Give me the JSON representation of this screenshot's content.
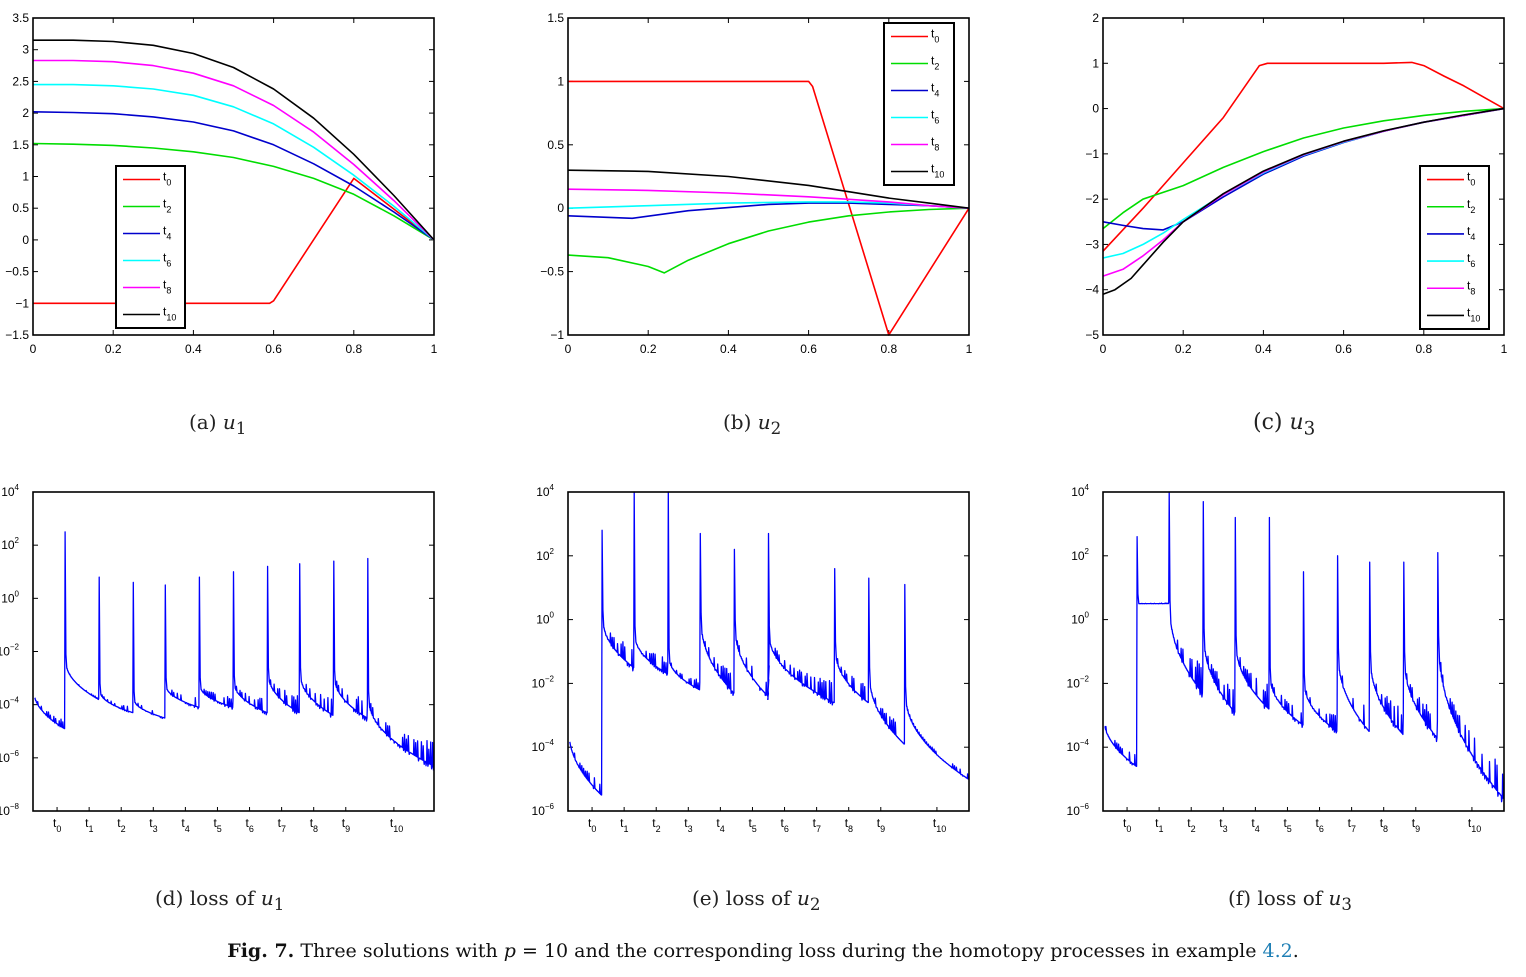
{
  "figure_caption": {
    "label": "Fig. 7.",
    "text_before": " Three solutions with ",
    "param": "p",
    "text_eq": " = 10",
    "text_after": " and the corresponding loss during the homotopy processes in example ",
    "ref": "4.2",
    "end": "."
  },
  "subcaptions": [
    {
      "tag": "(a)",
      "var": "u",
      "sub": "1"
    },
    {
      "tag": "(b)",
      "var": "u",
      "sub": "2"
    },
    {
      "tag": "(c)",
      "var": "u",
      "sub": "3"
    },
    {
      "tag": "(d) loss of",
      "var": "u",
      "sub": "1"
    },
    {
      "tag": "(e) loss of",
      "var": "u",
      "sub": "2"
    },
    {
      "tag": "(f) loss of",
      "var": "u",
      "sub": "3"
    }
  ],
  "colors": {
    "t0": "#ff0000",
    "t2": "#00dd00",
    "t4": "#0000cc",
    "t6": "#00ffff",
    "t8": "#ff00ff",
    "t10": "#000000",
    "loss": "#0000ff"
  },
  "chart_data": [
    {
      "type": "line",
      "id": "u1",
      "xlim": [
        0,
        1
      ],
      "ylim": [
        -1.5,
        3.5
      ],
      "xticks": [
        "0",
        "0.2",
        "0.4",
        "0.6",
        "0.8",
        "1"
      ],
      "yticks": [
        "-1.5",
        "-1",
        "-0.5",
        "0",
        "0.5",
        "1",
        "1.5",
        "2",
        "2.5",
        "3",
        "3.5"
      ],
      "legend": [
        "t0",
        "t2",
        "t4",
        "t6",
        "t8",
        "t10"
      ],
      "legend_position": "lower-center",
      "series": [
        {
          "name": "t0",
          "x": [
            0,
            0.55,
            0.59,
            0.6,
            0.8,
            1.0
          ],
          "y": [
            -1,
            -1,
            -1,
            -0.96,
            0.97,
            0
          ]
        },
        {
          "name": "t2",
          "x": [
            0,
            0.1,
            0.2,
            0.3,
            0.4,
            0.5,
            0.6,
            0.7,
            0.8,
            0.9,
            1.0
          ],
          "y": [
            1.52,
            1.51,
            1.49,
            1.45,
            1.39,
            1.3,
            1.16,
            0.97,
            0.72,
            0.38,
            0
          ]
        },
        {
          "name": "t4",
          "x": [
            0,
            0.1,
            0.2,
            0.3,
            0.4,
            0.5,
            0.6,
            0.7,
            0.8,
            0.9,
            1.0
          ],
          "y": [
            2.02,
            2.01,
            1.99,
            1.94,
            1.86,
            1.72,
            1.5,
            1.2,
            0.85,
            0.44,
            0
          ]
        },
        {
          "name": "t6",
          "x": [
            0,
            0.1,
            0.2,
            0.3,
            0.4,
            0.5,
            0.6,
            0.7,
            0.8,
            0.9,
            1.0
          ],
          "y": [
            2.45,
            2.45,
            2.43,
            2.38,
            2.28,
            2.1,
            1.83,
            1.46,
            1.02,
            0.53,
            0
          ]
        },
        {
          "name": "t8",
          "x": [
            0,
            0.1,
            0.2,
            0.3,
            0.4,
            0.5,
            0.6,
            0.7,
            0.8,
            0.9,
            1.0
          ],
          "y": [
            2.83,
            2.83,
            2.81,
            2.75,
            2.63,
            2.43,
            2.12,
            1.7,
            1.19,
            0.62,
            0
          ]
        },
        {
          "name": "t10",
          "x": [
            0,
            0.1,
            0.2,
            0.3,
            0.4,
            0.5,
            0.6,
            0.7,
            0.8,
            0.9,
            1.0
          ],
          "y": [
            3.15,
            3.15,
            3.13,
            3.07,
            2.94,
            2.72,
            2.38,
            1.92,
            1.35,
            0.7,
            0
          ]
        }
      ]
    },
    {
      "type": "line",
      "id": "u2",
      "xlim": [
        0,
        1
      ],
      "ylim": [
        -1,
        1.5
      ],
      "xticks": [
        "0",
        "0.2",
        "0.4",
        "0.6",
        "0.8",
        "1"
      ],
      "yticks": [
        "-1",
        "-0.5",
        "0",
        "0.5",
        "1",
        "1.5"
      ],
      "legend": [
        "t0",
        "t2",
        "t4",
        "t6",
        "t8",
        "t10"
      ],
      "legend_position": "top-right",
      "series": [
        {
          "name": "t0",
          "x": [
            0,
            0.58,
            0.6,
            0.61,
            0.8,
            1.0
          ],
          "y": [
            1,
            1,
            1.0,
            0.96,
            -1,
            0
          ]
        },
        {
          "name": "t2",
          "x": [
            0,
            0.1,
            0.2,
            0.24,
            0.3,
            0.4,
            0.5,
            0.6,
            0.7,
            0.8,
            0.9,
            1.0
          ],
          "y": [
            -0.37,
            -0.39,
            -0.46,
            -0.51,
            -0.41,
            -0.28,
            -0.18,
            -0.11,
            -0.06,
            -0.03,
            -0.01,
            0
          ]
        },
        {
          "name": "t4",
          "x": [
            0,
            0.16,
            0.3,
            0.5,
            0.6,
            0.7,
            0.8,
            0.9,
            1.0
          ],
          "y": [
            -0.06,
            -0.08,
            -0.02,
            0.03,
            0.04,
            0.04,
            0.03,
            0.02,
            0
          ]
        },
        {
          "name": "t6",
          "x": [
            0,
            0.2,
            0.4,
            0.6,
            0.7,
            0.8,
            0.9,
            1.0
          ],
          "y": [
            0,
            0.02,
            0.04,
            0.05,
            0.05,
            0.04,
            0.02,
            0
          ]
        },
        {
          "name": "t8",
          "x": [
            0,
            0.2,
            0.4,
            0.6,
            0.7,
            0.8,
            0.9,
            1.0
          ],
          "y": [
            0.15,
            0.14,
            0.12,
            0.09,
            0.07,
            0.05,
            0.02,
            0
          ]
        },
        {
          "name": "t10",
          "x": [
            0,
            0.2,
            0.4,
            0.6,
            0.7,
            0.8,
            0.9,
            1.0
          ],
          "y": [
            0.3,
            0.29,
            0.25,
            0.18,
            0.13,
            0.08,
            0.04,
            0
          ]
        }
      ]
    },
    {
      "type": "line",
      "id": "u3",
      "xlim": [
        0,
        1
      ],
      "ylim": [
        -5,
        2
      ],
      "xticks": [
        "0",
        "0.2",
        "0.4",
        "0.6",
        "0.8",
        "1"
      ],
      "yticks": [
        "-5",
        "-4",
        "-3",
        "-2",
        "-1",
        "0",
        "1",
        "2"
      ],
      "legend": [
        "t0",
        "t2",
        "t4",
        "t6",
        "t8",
        "t10"
      ],
      "legend_position": "bottom-right",
      "series": [
        {
          "name": "t0",
          "x": [
            0,
            0.1,
            0.2,
            0.3,
            0.39,
            0.41,
            0.5,
            0.6,
            0.7,
            0.77,
            0.8,
            0.85,
            0.9,
            0.95,
            1.0
          ],
          "y": [
            -3.15,
            -2.2,
            -1.2,
            -0.2,
            0.95,
            1.0,
            1.0,
            1.0,
            1.0,
            1.02,
            0.95,
            0.72,
            0.5,
            0.25,
            0
          ]
        },
        {
          "name": "t2",
          "x": [
            0,
            0.05,
            0.1,
            0.2,
            0.3,
            0.4,
            0.5,
            0.6,
            0.7,
            0.8,
            0.9,
            1.0
          ],
          "y": [
            -2.65,
            -2.3,
            -2.0,
            -1.7,
            -1.3,
            -0.95,
            -0.65,
            -0.43,
            -0.27,
            -0.15,
            -0.06,
            0
          ]
        },
        {
          "name": "t4",
          "x": [
            0,
            0.05,
            0.1,
            0.15,
            0.2,
            0.3,
            0.4,
            0.5,
            0.6,
            0.7,
            0.8,
            0.9,
            1.0
          ],
          "y": [
            -2.5,
            -2.58,
            -2.65,
            -2.68,
            -2.5,
            -1.95,
            -1.45,
            -1.05,
            -0.75,
            -0.5,
            -0.3,
            -0.15,
            0
          ]
        },
        {
          "name": "t6",
          "x": [
            0,
            0.05,
            0.1,
            0.15,
            0.2,
            0.3,
            0.4,
            0.5,
            0.6,
            0.7,
            0.8,
            0.9,
            1.0
          ],
          "y": [
            -3.3,
            -3.2,
            -3.0,
            -2.75,
            -2.45,
            -1.9,
            -1.42,
            -1.03,
            -0.74,
            -0.5,
            -0.3,
            -0.15,
            0
          ]
        },
        {
          "name": "t8",
          "x": [
            0,
            0.05,
            0.1,
            0.15,
            0.2,
            0.3,
            0.4,
            0.5,
            0.6,
            0.7,
            0.8,
            0.9,
            1.0
          ],
          "y": [
            -3.7,
            -3.55,
            -3.25,
            -2.9,
            -2.5,
            -1.9,
            -1.4,
            -1.02,
            -0.73,
            -0.5,
            -0.3,
            -0.15,
            0
          ]
        },
        {
          "name": "t10",
          "x": [
            0,
            0.03,
            0.07,
            0.1,
            0.15,
            0.2,
            0.3,
            0.4,
            0.5,
            0.6,
            0.7,
            0.8,
            0.9,
            1.0
          ],
          "y": [
            -4.1,
            -4.0,
            -3.75,
            -3.45,
            -2.95,
            -2.5,
            -1.88,
            -1.38,
            -1.01,
            -0.72,
            -0.49,
            -0.3,
            -0.14,
            0
          ]
        }
      ]
    },
    {
      "type": "line",
      "id": "loss-u1",
      "yscale": "log",
      "ylim_exp": [
        -8,
        4
      ],
      "yticks_exp": [
        -8,
        -6,
        -4,
        -2,
        0,
        2,
        4
      ],
      "xticks": [
        "t0",
        "t1",
        "t2",
        "t3",
        "t4",
        "t5",
        "t6",
        "t7",
        "t8",
        "t9",
        "t10"
      ],
      "xtick_pos": [
        0.06,
        0.14,
        0.22,
        0.3,
        0.38,
        0.46,
        0.54,
        0.62,
        0.7,
        0.78,
        0.9
      ],
      "stage_bounds": [
        0.08,
        0.165,
        0.25,
        0.33,
        0.415,
        0.5,
        0.585,
        0.665,
        0.75,
        0.835,
        1.0
      ],
      "spike_exp": [
        2.5,
        0.8,
        0.6,
        0.5,
        0.8,
        1.0,
        1.2,
        1.3,
        1.4,
        1.5
      ],
      "stage_start_exp": [
        -3.5,
        -2.4,
        -3.5,
        -3.8,
        -3.3,
        -3.3,
        -3.2,
        -2.9,
        -2.9,
        -3.0,
        -3.8
      ],
      "stage_end_exp": [
        -4.9,
        -3.8,
        -4.3,
        -4.5,
        -4.1,
        -4.1,
        -4.3,
        -4.3,
        -4.4,
        -4.5,
        -6.3
      ],
      "noise_amp": [
        0.6,
        0.1,
        0.4,
        0.5,
        0.9,
        0.9,
        1.0,
        1.4,
        1.5,
        1.6,
        1.8
      ]
    },
    {
      "type": "line",
      "id": "loss-u2",
      "yscale": "log",
      "ylim_exp": [
        -6,
        4
      ],
      "yticks_exp": [
        -6,
        -4,
        -2,
        0,
        2,
        4
      ],
      "xticks": [
        "t0",
        "t1",
        "t2",
        "t3",
        "t4",
        "t5",
        "t6",
        "t7",
        "t8",
        "t9",
        "t10"
      ],
      "xtick_pos": [
        0.06,
        0.14,
        0.22,
        0.3,
        0.38,
        0.46,
        0.54,
        0.62,
        0.7,
        0.78,
        0.92
      ],
      "stage_bounds": [
        0.085,
        0.165,
        0.25,
        0.33,
        0.415,
        0.5,
        0.5,
        0.665,
        0.75,
        0.84,
        1.0
      ],
      "spike_exp": [
        2.8,
        4.0,
        4.0,
        2.7,
        2.2,
        2.7,
        2.3,
        1.6,
        1.3,
        1.1
      ],
      "stage_start_exp": [
        -3.5,
        0.0,
        -0.5,
        -1.2,
        -0.1,
        -0.3,
        -0.4,
        -0.5,
        -1.0,
        -1.8,
        -2.4
      ],
      "stage_end_exp": [
        -5.5,
        -1.5,
        -1.7,
        -2.2,
        -2.3,
        -2.4,
        -2.5,
        -2.6,
        -2.6,
        -3.9,
        -5.0
      ],
      "noise_amp": [
        0.8,
        1.4,
        1.0,
        0.6,
        1.2,
        1.2,
        1.3,
        1.3,
        1.1,
        1.2,
        0.3
      ]
    },
    {
      "type": "line",
      "id": "loss-u3",
      "yscale": "log",
      "ylim_exp": [
        -6,
        4
      ],
      "yticks_exp": [
        -6,
        -4,
        -2,
        0,
        2,
        4
      ],
      "xticks": [
        "t0",
        "t1",
        "t2",
        "t3",
        "t4",
        "t5",
        "t6",
        "t7",
        "t8",
        "t9",
        "t10"
      ],
      "xtick_pos": [
        0.06,
        0.14,
        0.22,
        0.3,
        0.38,
        0.46,
        0.54,
        0.62,
        0.7,
        0.78,
        0.92
      ],
      "stage_bounds": [
        0.085,
        0.165,
        0.25,
        0.33,
        0.415,
        0.5,
        0.585,
        0.665,
        0.75,
        0.835,
        1.0
      ],
      "spike_exp": [
        2.6,
        4.2,
        3.7,
        3.2,
        3.2,
        1.5,
        2.0,
        1.8,
        1.8,
        2.1
      ],
      "stage_start_exp": [
        -3.1,
        0.5,
        0.3,
        -0.6,
        -0.8,
        -1.8,
        -2.0,
        -1.2,
        -1.3,
        -1.3,
        -0.8
      ],
      "stage_end_exp": [
        -4.6,
        0.5,
        -2.3,
        -2.9,
        -2.8,
        -3.3,
        -3.5,
        -3.5,
        -3.6,
        -3.7,
        -5.6
      ],
      "noise_amp": [
        0.8,
        0.05,
        1.8,
        1.6,
        1.5,
        1.1,
        1.0,
        1.4,
        1.6,
        1.6,
        2.0
      ]
    }
  ]
}
